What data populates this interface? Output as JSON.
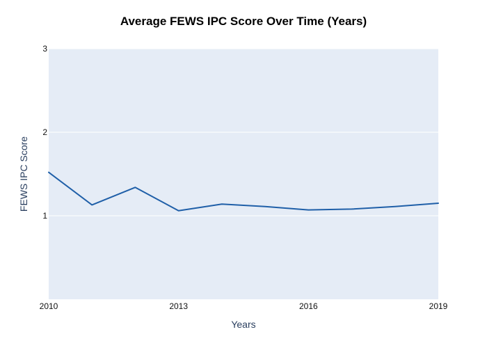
{
  "chart_data": {
    "type": "line",
    "title": "Average FEWS IPC Score Over Time (Years)",
    "xlabel": "Years",
    "ylabel": "FEWS IPC Score",
    "x": [
      2010,
      2011,
      2012,
      2013,
      2014,
      2015,
      2016,
      2017,
      2018,
      2019
    ],
    "series": [
      {
        "values": [
          1.52,
          1.13,
          1.34,
          1.06,
          1.14,
          1.11,
          1.07,
          1.08,
          1.11,
          1.15
        ],
        "color": "#1f5fa8"
      }
    ],
    "xlim": [
      2010,
      2019
    ],
    "ylim": [
      0,
      3
    ],
    "xticks": [
      "2010",
      "2013",
      "2016",
      "2019"
    ],
    "yticks": [
      "1",
      "2",
      "3"
    ],
    "grid": true,
    "plot_background": "#e5ecf6"
  }
}
